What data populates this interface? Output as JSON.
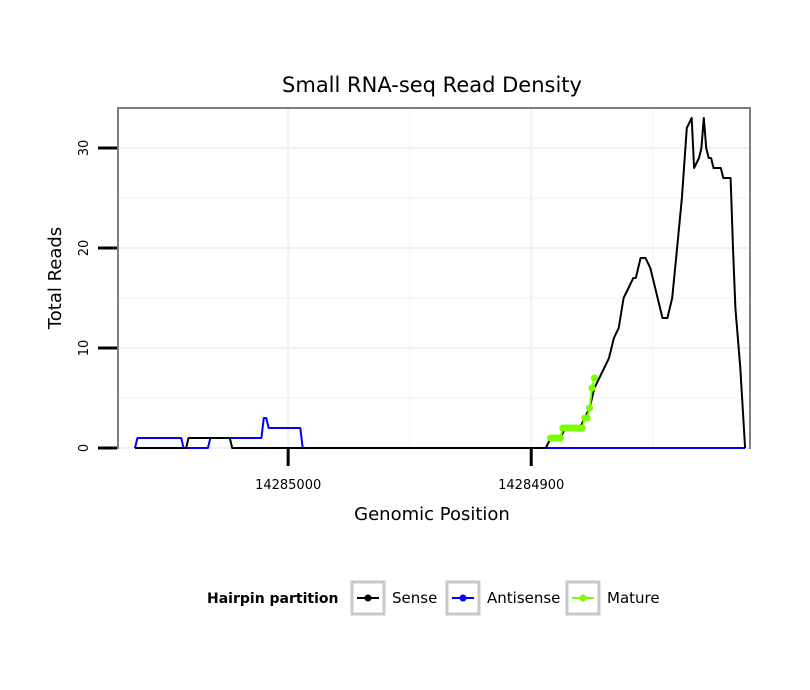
{
  "chart_data": {
    "type": "line",
    "title": "Small RNA-seq Read Density",
    "xlabel": "Genomic Position",
    "ylabel": "Total Reads",
    "x_reversed": true,
    "xlim": [
      14285070,
      14284810
    ],
    "ylim": [
      0,
      34
    ],
    "y_ticks": [
      0,
      10,
      20,
      30
    ],
    "y_tick_labels": [
      "0",
      "10",
      "20",
      "30"
    ],
    "x_ticks": [
      14285000,
      14284900
    ],
    "x_tick_labels": [
      "14285000",
      "14284900"
    ],
    "grid": true,
    "legend": {
      "title": "Hairpin partition",
      "placement": "bottom",
      "entries": [
        "Sense",
        "Antisense",
        "Mature"
      ]
    },
    "series": [
      {
        "name": "Sense",
        "color": "#000000",
        "style": "line",
        "x": [
          14285063,
          14285042,
          14285041,
          14285024,
          14285023,
          14285006,
          14284894,
          14284892,
          14284890,
          14284888,
          14284886,
          14284884,
          14284882,
          14284880,
          14284878,
          14284876,
          14284874,
          14284872,
          14284870,
          14284868,
          14284866,
          14284864,
          14284862,
          14284860,
          14284858,
          14284857,
          14284855,
          14284853,
          14284851,
          14284849,
          14284848,
          14284846,
          14284844,
          14284842,
          14284840,
          14284838,
          14284836,
          14284834,
          14284833,
          14284831,
          14284830,
          14284829,
          14284828,
          14284827,
          14284826,
          14284825,
          14284824,
          14284823,
          14284822,
          14284821,
          14284820,
          14284819,
          14284818,
          14284817,
          14284816,
          14284814,
          14284812
        ],
        "y": [
          0,
          0,
          1,
          1,
          0,
          0,
          0,
          1,
          1,
          1,
          2,
          2,
          2,
          2,
          3,
          4,
          6,
          7,
          8,
          9,
          11,
          12,
          15,
          16,
          17,
          17,
          19,
          19,
          18,
          16,
          15,
          13,
          13,
          15,
          20,
          25,
          32,
          33,
          28,
          29,
          30,
          33,
          30,
          29,
          29,
          28,
          28,
          28,
          28,
          27,
          27,
          27,
          27,
          20,
          14,
          8,
          0
        ]
      },
      {
        "name": "Antisense",
        "color": "#0000ff",
        "style": "line",
        "x": [
          14285063,
          14285062,
          14285044,
          14285043,
          14285033,
          14285032,
          14285011,
          14285010,
          14285009,
          14285008,
          14285007,
          14284995,
          14284994,
          14284812
        ],
        "y": [
          0,
          1,
          1,
          0,
          0,
          1,
          1,
          3,
          3,
          2,
          2,
          2,
          0,
          0
        ]
      },
      {
        "name": "Mature",
        "color": "#7cfc00",
        "style": "points",
        "x": [
          14284892,
          14284891,
          14284890,
          14284889,
          14284888,
          14284887,
          14284886,
          14284885,
          14284884,
          14284883,
          14284882,
          14284881,
          14284880,
          14284879,
          14284878,
          14284877,
          14284876,
          14284875,
          14284874
        ],
        "y": [
          1,
          1,
          1,
          1,
          1,
          2,
          2,
          2,
          2,
          2,
          2,
          2,
          2,
          2,
          3,
          3,
          4,
          6,
          7
        ]
      }
    ]
  }
}
